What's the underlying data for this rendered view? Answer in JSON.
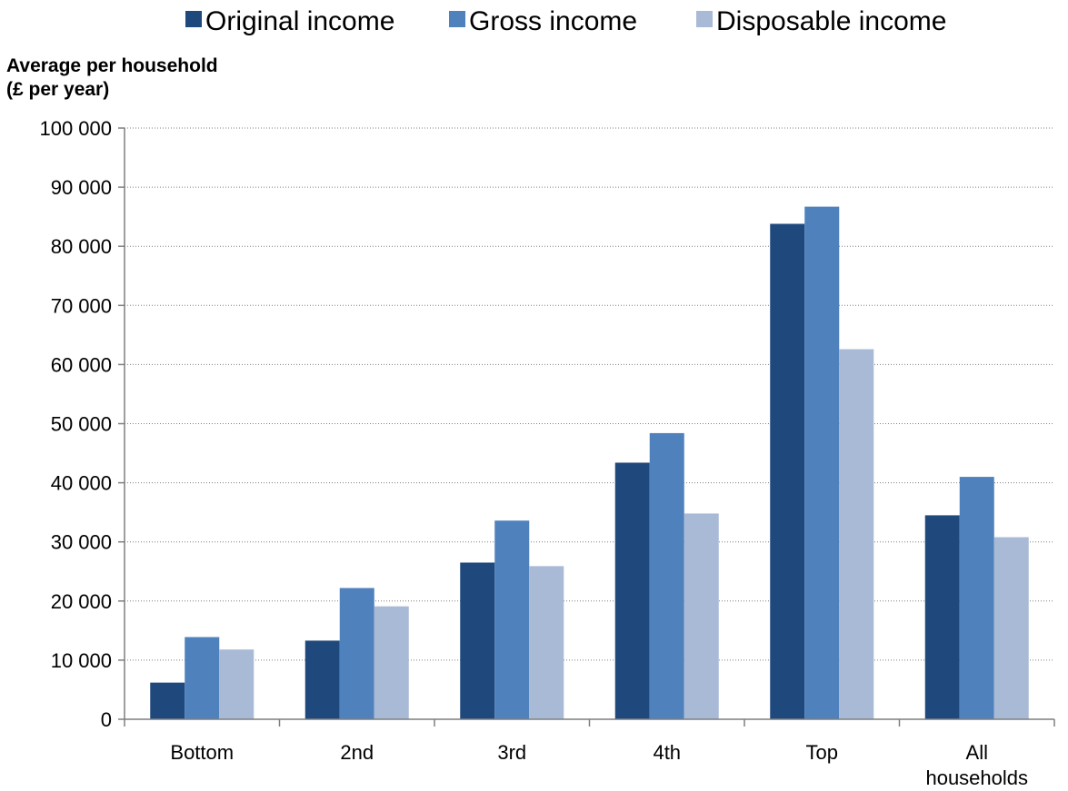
{
  "chart_data": {
    "type": "bar",
    "title": "",
    "ylabel_lines": [
      "Average per household",
      "(£ per year)"
    ],
    "xlabel": "",
    "categories": [
      [
        "Bottom"
      ],
      [
        "2nd"
      ],
      [
        "3rd"
      ],
      [
        "4th"
      ],
      [
        "Top"
      ],
      [
        "All",
        "households"
      ]
    ],
    "series": [
      {
        "name": "Original income",
        "color": "#1F497D",
        "values": [
          6200,
          13300,
          26500,
          43400,
          83800,
          34500
        ]
      },
      {
        "name": "Gross income",
        "color": "#4F81BD",
        "values": [
          13900,
          22200,
          33600,
          48400,
          86700,
          41000
        ]
      },
      {
        "name": "Disposable income",
        "color": "#A9BAD6",
        "values": [
          11800,
          19100,
          25900,
          34800,
          62600,
          30800
        ]
      }
    ],
    "ylim": [
      0,
      100000
    ],
    "yticks": [
      0,
      10000,
      20000,
      30000,
      40000,
      50000,
      60000,
      70000,
      80000,
      90000,
      100000
    ],
    "ytick_labels": [
      "0",
      "10 000",
      "20 000",
      "30 000",
      "40 000",
      "50 000",
      "60 000",
      "70 000",
      "80 000",
      "90 000",
      "100 000"
    ],
    "grid": "horizontal dotted",
    "legend_position": "top"
  }
}
